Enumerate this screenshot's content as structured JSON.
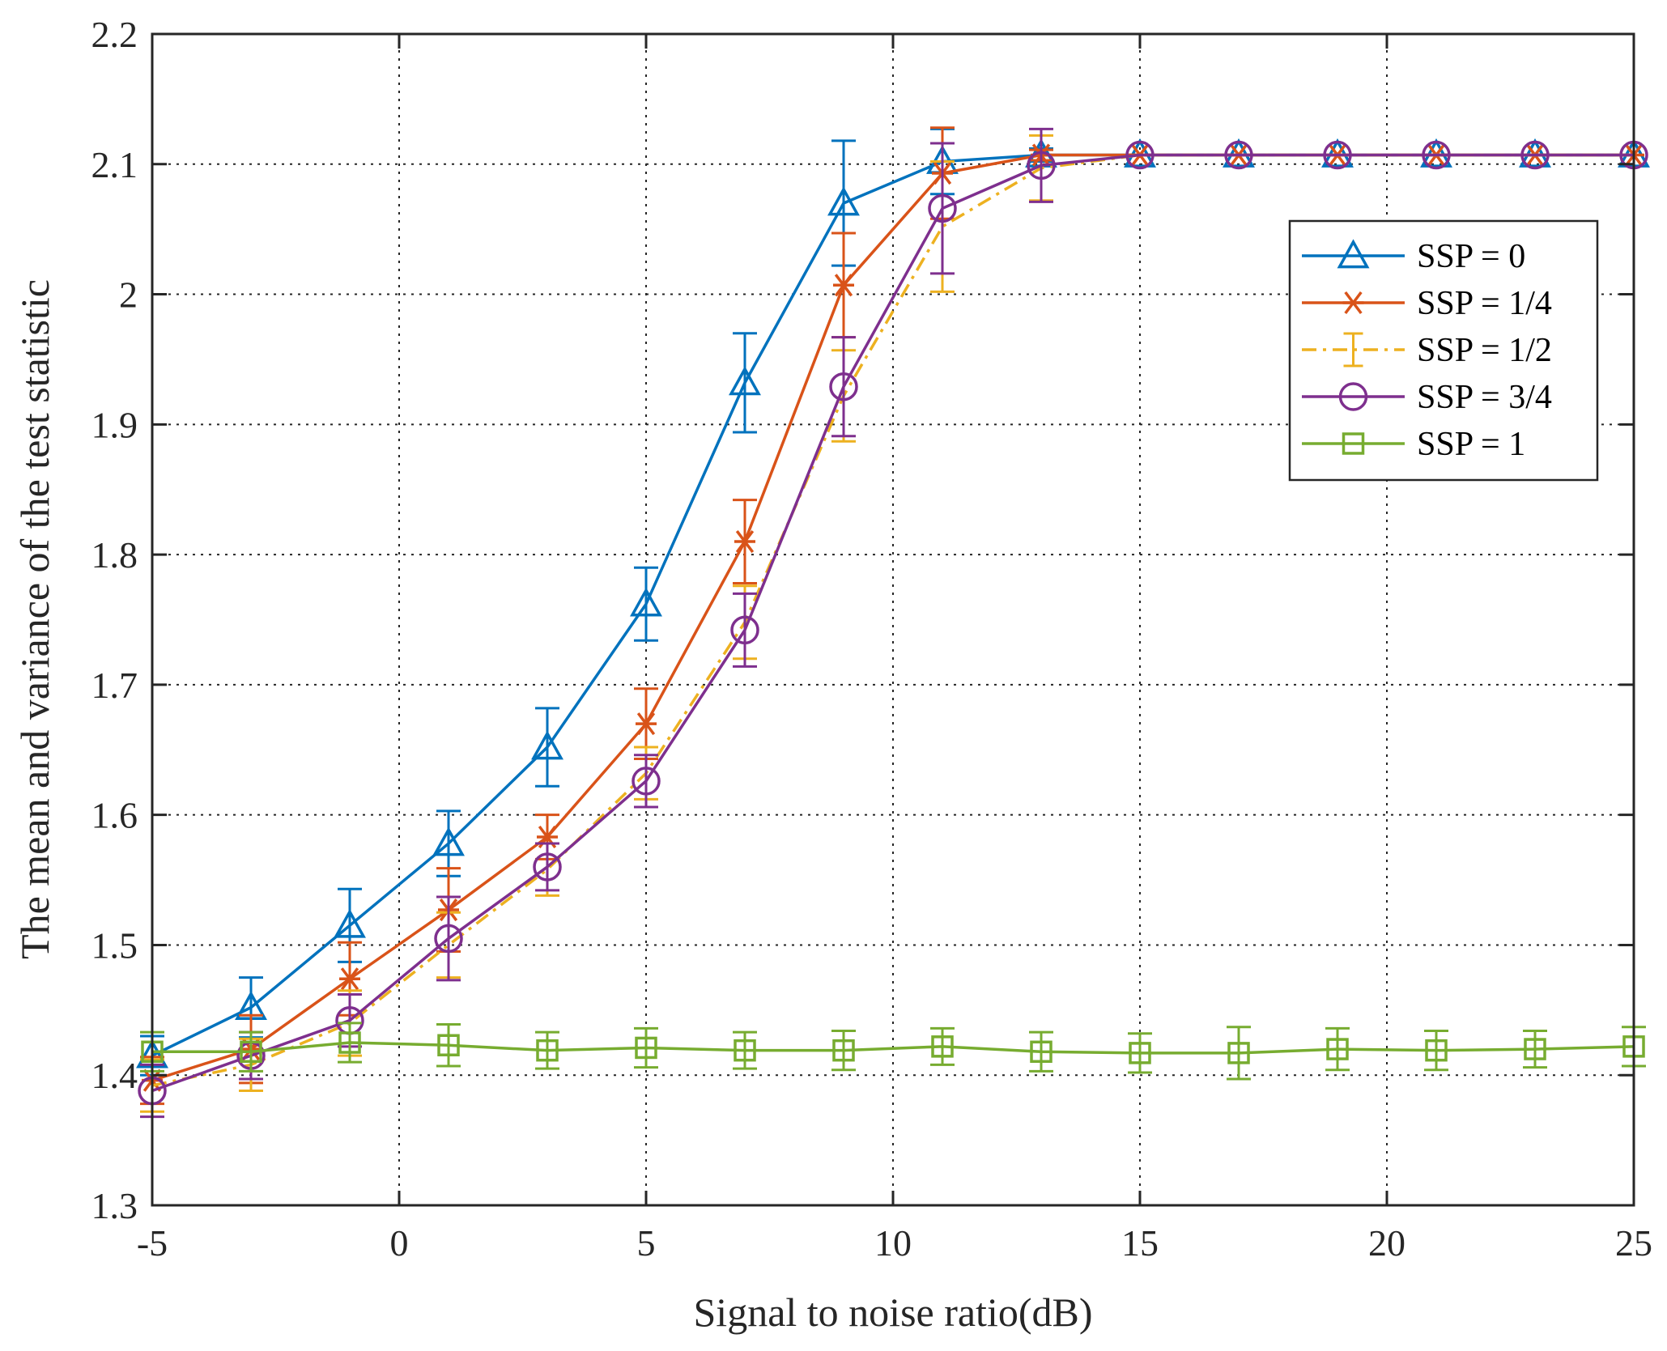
{
  "chart_data": {
    "type": "line",
    "title": "",
    "xlabel": "Signal to noise ratio(dB)",
    "ylabel": "The mean and variance of the test statistic",
    "xlim": [
      -5,
      25
    ],
    "ylim": [
      1.3,
      2.2
    ],
    "xticks": [
      "-5",
      "0",
      "5",
      "10",
      "15",
      "20",
      "25"
    ],
    "yticks": [
      "1.3",
      "1.4",
      "1.5",
      "1.6",
      "1.7",
      "1.8",
      "1.9",
      "2",
      "2.1",
      "2.2"
    ],
    "grid": true,
    "legend_position": "top-right",
    "x": [
      -5,
      -3,
      -1,
      1,
      3,
      5,
      7,
      9,
      11,
      13,
      15,
      17,
      19,
      21,
      23,
      25
    ],
    "series": [
      {
        "name": "SSP = 0",
        "color": "#0072BD",
        "marker": "triangle",
        "line": "solid",
        "values": [
          1.415,
          1.452,
          1.515,
          1.578,
          1.652,
          1.762,
          1.932,
          2.07,
          2.102,
          2.107,
          2.107,
          2.107,
          2.107,
          2.107,
          2.107,
          2.107
        ],
        "errors": [
          0.015,
          0.023,
          0.028,
          0.025,
          0.03,
          0.028,
          0.038,
          0.048,
          0.025,
          0.005,
          0.001,
          0.001,
          0.001,
          0.001,
          0.001,
          0.001
        ]
      },
      {
        "name": "SSP = 1/4",
        "color": "#D95319",
        "marker": "asterisk",
        "line": "solid",
        "values": [
          1.396,
          1.42,
          1.474,
          1.527,
          1.583,
          1.67,
          1.81,
          2.007,
          2.093,
          2.107,
          2.107,
          2.107,
          2.107,
          2.107,
          2.107,
          2.107
        ],
        "errors": [
          0.018,
          0.026,
          0.028,
          0.032,
          0.017,
          0.027,
          0.032,
          0.04,
          0.035,
          0.004,
          0.001,
          0.001,
          0.001,
          0.001,
          0.001,
          0.001
        ]
      },
      {
        "name": "SSP = 1/2",
        "color": "#EDB120",
        "marker": "errorbar",
        "line": "dashdot",
        "values": [
          1.392,
          1.408,
          1.44,
          1.5,
          1.558,
          1.632,
          1.748,
          1.922,
          2.052,
          2.097,
          2.107,
          2.107,
          2.107,
          2.107,
          2.107,
          2.107
        ],
        "errors": [
          0.02,
          0.02,
          0.025,
          0.025,
          0.02,
          0.02,
          0.028,
          0.035,
          0.05,
          0.025,
          0.001,
          0.001,
          0.001,
          0.001,
          0.001,
          0.001
        ]
      },
      {
        "name": "SSP = 3/4",
        "color": "#7E2F8E",
        "marker": "circle",
        "line": "solid",
        "values": [
          1.388,
          1.415,
          1.442,
          1.505,
          1.56,
          1.626,
          1.742,
          1.929,
          2.066,
          2.099,
          2.107,
          2.107,
          2.107,
          2.107,
          2.107,
          2.107
        ],
        "errors": [
          0.02,
          0.018,
          0.02,
          0.032,
          0.018,
          0.02,
          0.028,
          0.038,
          0.05,
          0.028,
          0.001,
          0.001,
          0.001,
          0.001,
          0.001,
          0.001
        ]
      },
      {
        "name": "SSP = 1",
        "color": "#77AC30",
        "marker": "square",
        "line": "solid",
        "values": [
          1.418,
          1.418,
          1.425,
          1.423,
          1.419,
          1.421,
          1.419,
          1.419,
          1.422,
          1.418,
          1.417,
          1.417,
          1.42,
          1.419,
          1.42,
          1.422
        ],
        "errors": [
          0.015,
          0.015,
          0.015,
          0.016,
          0.014,
          0.015,
          0.014,
          0.015,
          0.014,
          0.015,
          0.015,
          0.02,
          0.016,
          0.015,
          0.014,
          0.015
        ]
      }
    ]
  }
}
